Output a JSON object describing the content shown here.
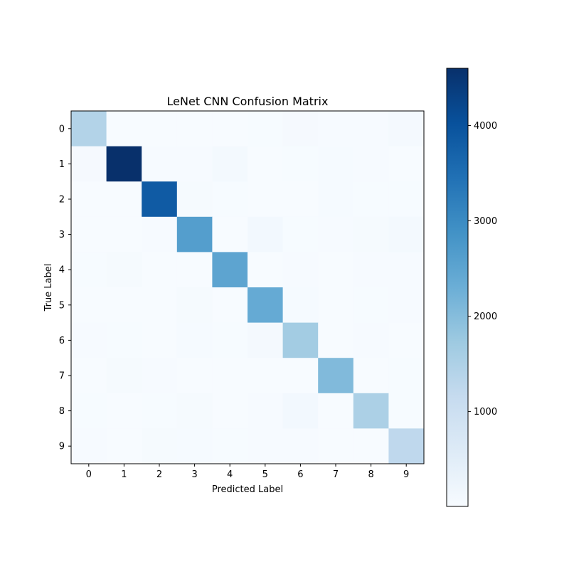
{
  "chart_data": {
    "type": "heatmap",
    "title": "LeNet CNN Confusion Matrix",
    "xlabel": "Predicted Label",
    "ylabel": "True Label",
    "x_categories": [
      "0",
      "1",
      "2",
      "3",
      "4",
      "5",
      "6",
      "7",
      "8",
      "9"
    ],
    "y_categories": [
      "0",
      "1",
      "2",
      "3",
      "4",
      "5",
      "6",
      "7",
      "8",
      "9"
    ],
    "values": [
      [
        1430,
        10,
        15,
        8,
        12,
        20,
        60,
        25,
        30,
        70
      ],
      [
        60,
        4600,
        30,
        25,
        90,
        10,
        20,
        40,
        35,
        15
      ],
      [
        10,
        15,
        3850,
        55,
        20,
        10,
        15,
        40,
        20,
        20
      ],
      [
        10,
        15,
        30,
        2630,
        10,
        110,
        20,
        25,
        45,
        90
      ],
      [
        20,
        50,
        10,
        15,
        2500,
        10,
        30,
        15,
        35,
        35
      ],
      [
        15,
        10,
        10,
        50,
        10,
        2380,
        40,
        15,
        20,
        25
      ],
      [
        35,
        20,
        15,
        40,
        20,
        65,
        1660,
        10,
        35,
        15
      ],
      [
        15,
        45,
        25,
        10,
        15,
        10,
        10,
        2050,
        15,
        20
      ],
      [
        20,
        15,
        20,
        45,
        15,
        30,
        110,
        15,
        1530,
        20
      ],
      [
        30,
        15,
        50,
        40,
        20,
        30,
        25,
        15,
        15,
        1250
      ]
    ],
    "colormap": "Blues",
    "colormap_stops": [
      "#f7fbff",
      "#deebf7",
      "#c6dbef",
      "#9ecae1",
      "#6baed6",
      "#4292c6",
      "#2171b5",
      "#08519c",
      "#08306b"
    ],
    "vmin": 5,
    "vmax": 4600,
    "colorbar_ticks": [
      1000,
      2000,
      3000,
      4000
    ],
    "colorbar_tick_labels": [
      "1000",
      "2000",
      "3000",
      "4000"
    ]
  }
}
